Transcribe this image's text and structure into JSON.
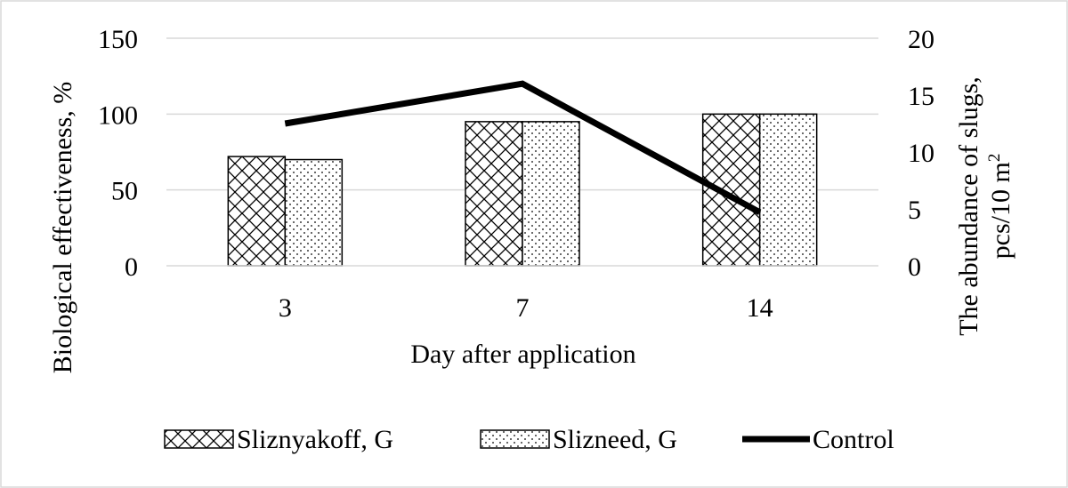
{
  "chart_data": {
    "type": "bar",
    "categories": [
      "3",
      "7",
      "14"
    ],
    "xlabel": "Day after application",
    "ylabel": "Biological effectiveness, %",
    "y2label_line1": "The abundance of slugs,",
    "y2label_line2": "pcs/10 m",
    "y2label_sup": "2",
    "ylim": [
      0,
      150
    ],
    "yticks": [
      0,
      50,
      100,
      150
    ],
    "y2lim": [
      0,
      20
    ],
    "y2ticks": [
      0,
      5,
      10,
      15,
      20
    ],
    "grid": true,
    "legend_position": "bottom",
    "series": [
      {
        "name": "Sliznyakoff, G",
        "type": "bar",
        "axis": "left",
        "pattern": "crosshatch",
        "values": [
          72,
          95,
          100
        ]
      },
      {
        "name": "Slizneed, G",
        "type": "bar",
        "axis": "left",
        "pattern": "dots",
        "values": [
          70,
          95,
          100
        ]
      },
      {
        "name": "Control",
        "type": "line",
        "axis": "right",
        "color": "#000000",
        "values": [
          12.5,
          16,
          4.7
        ]
      }
    ]
  }
}
